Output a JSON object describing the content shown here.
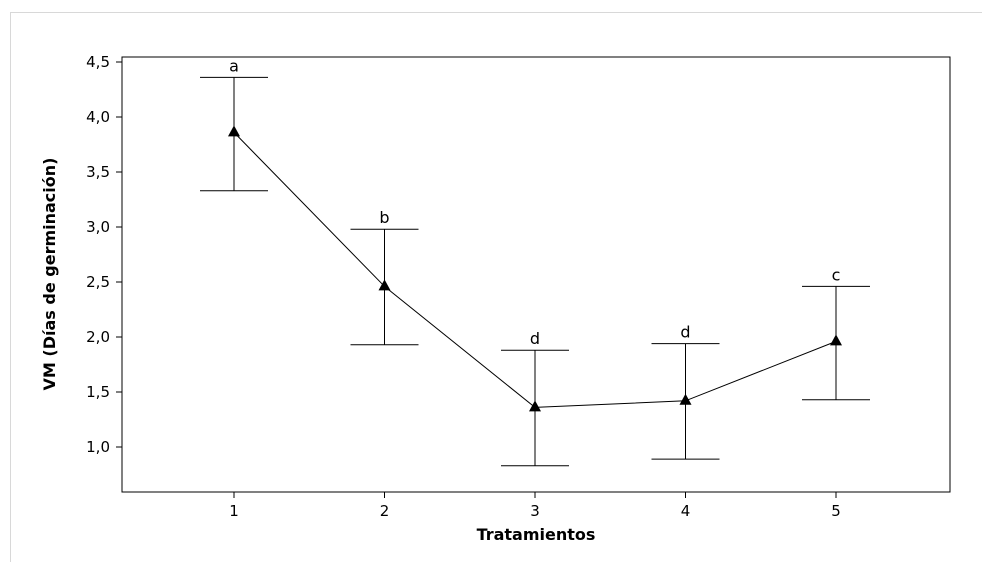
{
  "chart_data": {
    "type": "line",
    "title": "",
    "xlabel": "Tratamientos",
    "ylabel": "VM (Días de germinación)",
    "categories": [
      "1",
      "2",
      "3",
      "4",
      "5"
    ],
    "ylim": [
      0.5,
      4.5
    ],
    "y_ticks": [
      "1,0",
      "1,5",
      "2,0",
      "2,5",
      "3,0",
      "3,5",
      "4,0",
      "4,5"
    ],
    "y_tick_values": [
      1.0,
      1.5,
      2.0,
      2.5,
      3.0,
      3.5,
      4.0,
      4.5
    ],
    "series": [
      {
        "values": [
          3.86,
          2.46,
          1.36,
          1.42,
          1.96
        ],
        "error_low": [
          3.33,
          1.93,
          0.83,
          0.89,
          1.43
        ],
        "error_high": [
          4.36,
          2.98,
          1.88,
          1.94,
          2.46
        ],
        "group_labels": [
          "a",
          "b",
          "d",
          "d",
          "c"
        ],
        "marker": "triangle",
        "color": "#000000"
      }
    ],
    "grid": false,
    "legend": "none"
  }
}
